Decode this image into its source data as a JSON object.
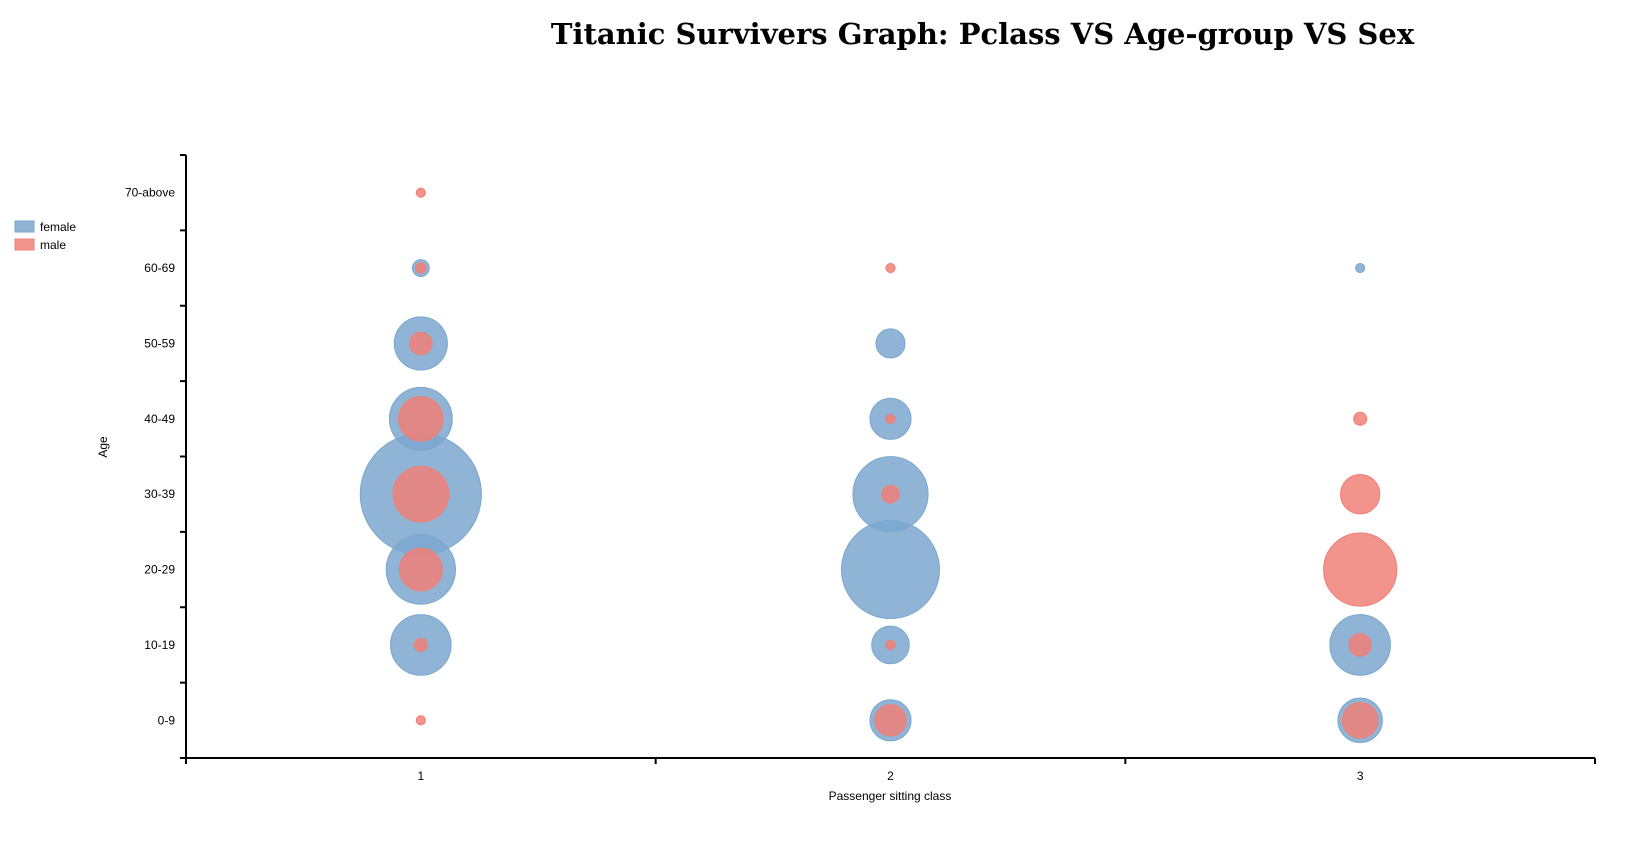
{
  "chart_data": {
    "type": "scatter",
    "title": "Titanic Survivers Graph: Pclass VS Age-group VS Sex",
    "xlabel": "Passenger sitting class",
    "ylabel": "Age",
    "x_categories": [
      "1",
      "2",
      "3"
    ],
    "y_categories": [
      "0-9",
      "10-19",
      "20-29",
      "30-39",
      "40-49",
      "50-59",
      "60-69",
      "70-above"
    ],
    "size_encoding": "survivor count (bubble area)",
    "legend": {
      "placement": "top-left",
      "entries": [
        "female",
        "male"
      ]
    },
    "colors": {
      "female": "#7ba7cf",
      "male": "#f08078"
    },
    "series": [
      {
        "name": "female",
        "points": [
          {
            "x": "1",
            "y": "10-19",
            "value": 13
          },
          {
            "x": "1",
            "y": "20-29",
            "value": 17
          },
          {
            "x": "1",
            "y": "30-39",
            "value": 52
          },
          {
            "x": "1",
            "y": "40-49",
            "value": 14
          },
          {
            "x": "1",
            "y": "50-59",
            "value": 10
          },
          {
            "x": "1",
            "y": "60-69",
            "value": 1
          },
          {
            "x": "2",
            "y": "0-9",
            "value": 6
          },
          {
            "x": "2",
            "y": "10-19",
            "value": 5
          },
          {
            "x": "2",
            "y": "20-29",
            "value": 34
          },
          {
            "x": "2",
            "y": "30-39",
            "value": 20
          },
          {
            "x": "2",
            "y": "40-49",
            "value": 6
          },
          {
            "x": "2",
            "y": "50-59",
            "value": 3
          },
          {
            "x": "3",
            "y": "0-9",
            "value": 7
          },
          {
            "x": "3",
            "y": "10-19",
            "value": 13
          },
          {
            "x": "3",
            "y": "60-69",
            "value": 0.3
          }
        ]
      },
      {
        "name": "male",
        "points": [
          {
            "x": "1",
            "y": "0-9",
            "value": 0.3
          },
          {
            "x": "1",
            "y": "10-19",
            "value": 0.6
          },
          {
            "x": "1",
            "y": "20-29",
            "value": 6.5
          },
          {
            "x": "1",
            "y": "30-39",
            "value": 11
          },
          {
            "x": "1",
            "y": "40-49",
            "value": 7
          },
          {
            "x": "1",
            "y": "50-59",
            "value": 1.8
          },
          {
            "x": "1",
            "y": "60-69",
            "value": 0.4
          },
          {
            "x": "1",
            "y": "70-above",
            "value": 0.3
          },
          {
            "x": "2",
            "y": "0-9",
            "value": 3.5
          },
          {
            "x": "2",
            "y": "10-19",
            "value": 0.3
          },
          {
            "x": "2",
            "y": "20-29",
            "value": 0
          },
          {
            "x": "2",
            "y": "30-39",
            "value": 1.1
          },
          {
            "x": "2",
            "y": "40-49",
            "value": 0.3
          },
          {
            "x": "2",
            "y": "60-69",
            "value": 0.3
          },
          {
            "x": "3",
            "y": "0-9",
            "value": 4.5
          },
          {
            "x": "3",
            "y": "10-19",
            "value": 1.8
          },
          {
            "x": "3",
            "y": "20-29",
            "value": 19
          },
          {
            "x": "3",
            "y": "30-39",
            "value": 5.5
          },
          {
            "x": "3",
            "y": "40-49",
            "value": 0.6
          }
        ]
      }
    ]
  }
}
